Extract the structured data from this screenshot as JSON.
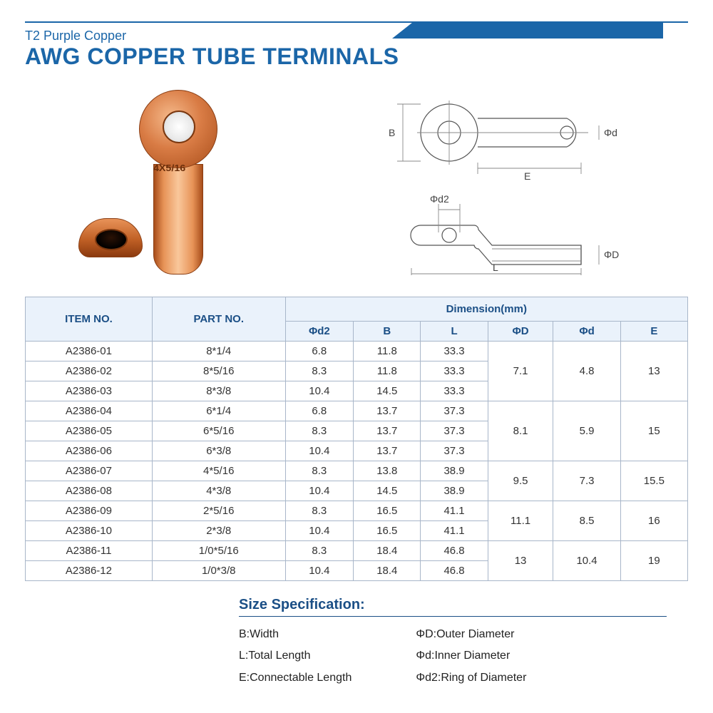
{
  "header": {
    "subtitle": "T2 Purple Copper",
    "title": "AWG COPPER TUBE TERMINALS",
    "accent_color": "#1b66a8"
  },
  "product_label": "4X5/16",
  "diagram_labels": {
    "B": "B",
    "E": "E",
    "phi_d": "Φd",
    "phi_d2": "Φd2",
    "phi_D": "ΦD",
    "L": "L"
  },
  "table": {
    "header_bg": "#eaf2fb",
    "border_color": "#a8b6c9",
    "col_item": "ITEM NO.",
    "col_part": "PART NO.",
    "col_dim_group": "Dimension(mm)",
    "cols_dim": [
      "Φd2",
      "B",
      "L",
      "ΦD",
      "Φd",
      "E"
    ],
    "groups": [
      {
        "merged": {
          "phiD": "7.1",
          "phid": "4.8",
          "E": "13"
        },
        "rows": [
          {
            "item": "A2386-01",
            "part": "8*1/4",
            "d2": "6.8",
            "B": "11.8",
            "L": "33.3"
          },
          {
            "item": "A2386-02",
            "part": "8*5/16",
            "d2": "8.3",
            "B": "11.8",
            "L": "33.3"
          },
          {
            "item": "A2386-03",
            "part": "8*3/8",
            "d2": "10.4",
            "B": "14.5",
            "L": "33.3"
          }
        ]
      },
      {
        "merged": {
          "phiD": "8.1",
          "phid": "5.9",
          "E": "15"
        },
        "rows": [
          {
            "item": "A2386-04",
            "part": "6*1/4",
            "d2": "6.8",
            "B": "13.7",
            "L": "37.3"
          },
          {
            "item": "A2386-05",
            "part": "6*5/16",
            "d2": "8.3",
            "B": "13.7",
            "L": "37.3"
          },
          {
            "item": "A2386-06",
            "part": "6*3/8",
            "d2": "10.4",
            "B": "13.7",
            "L": "37.3"
          }
        ]
      },
      {
        "merged": {
          "phiD": "9.5",
          "phid": "7.3",
          "E": "15.5"
        },
        "rows": [
          {
            "item": "A2386-07",
            "part": "4*5/16",
            "d2": "8.3",
            "B": "13.8",
            "L": "38.9"
          },
          {
            "item": "A2386-08",
            "part": "4*3/8",
            "d2": "10.4",
            "B": "14.5",
            "L": "38.9"
          }
        ]
      },
      {
        "merged": {
          "phiD": "11.1",
          "phid": "8.5",
          "E": "16"
        },
        "rows": [
          {
            "item": "A2386-09",
            "part": "2*5/16",
            "d2": "8.3",
            "B": "16.5",
            "L": "41.1"
          },
          {
            "item": "A2386-10",
            "part": "2*3/8",
            "d2": "10.4",
            "B": "16.5",
            "L": "41.1"
          }
        ]
      },
      {
        "merged": {
          "phiD": "13",
          "phid": "10.4",
          "E": "19"
        },
        "rows": [
          {
            "item": "A2386-11",
            "part": "1/0*5/16",
            "d2": "8.3",
            "B": "18.4",
            "L": "46.8"
          },
          {
            "item": "A2386-12",
            "part": "1/0*3/8",
            "d2": "10.4",
            "B": "18.4",
            "L": "46.8"
          }
        ]
      }
    ]
  },
  "size_spec": {
    "title": "Size Specification:",
    "left": [
      "B:Width",
      "L:Total Length",
      "E:Connectable Length"
    ],
    "right": [
      "ΦD:Outer Diameter",
      "Φd:Inner Diameter",
      "Φd2:Ring of Diameter"
    ]
  }
}
